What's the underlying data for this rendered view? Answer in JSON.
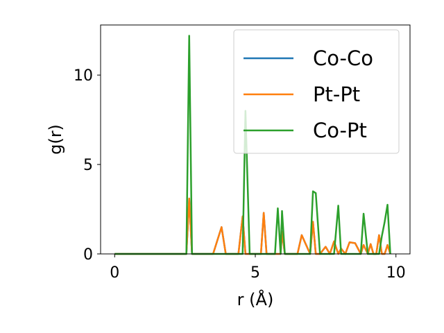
{
  "chart_data": {
    "type": "line",
    "title": "",
    "xlabel": "r (Å)",
    "ylabel": "g(r)",
    "xlim": [
      -0.5,
      10.5
    ],
    "ylim": [
      0,
      12.8
    ],
    "x_ticks": [
      0,
      5,
      10
    ],
    "y_ticks": [
      0,
      5,
      10
    ],
    "grid": false,
    "legend_position": "upper right",
    "x": [
      0.0,
      2.5,
      2.55,
      2.65,
      2.75,
      3.0,
      3.5,
      3.65,
      3.8,
      3.95,
      4.4,
      4.55,
      4.65,
      4.8,
      5.2,
      5.3,
      5.4,
      5.7,
      5.8,
      5.9,
      5.95,
      6.05,
      6.15,
      6.3,
      6.5,
      6.65,
      6.95,
      7.05,
      7.15,
      7.3,
      7.5,
      7.65,
      7.8,
      7.95,
      8.05,
      8.2,
      8.35,
      8.55,
      8.75,
      8.85,
      9.0,
      9.1,
      9.2,
      9.3,
      9.4,
      9.5,
      9.6,
      9.7,
      9.8
    ],
    "series": [
      {
        "name": "Co-Co",
        "color": "#1f77b4",
        "values": [
          0,
          0,
          0,
          3.1,
          0,
          0,
          0,
          0.75,
          1.5,
          0,
          0,
          2.1,
          0,
          0,
          0,
          2.3,
          0,
          0,
          0,
          0,
          1.25,
          0,
          0,
          0,
          0,
          1.05,
          0,
          1.8,
          0,
          0,
          0.4,
          0,
          0.7,
          0,
          0.3,
          0,
          0.65,
          0.6,
          0,
          0.5,
          0,
          0.55,
          0,
          0,
          1.05,
          0,
          0,
          0.5,
          0
        ]
      },
      {
        "name": "Pt-Pt",
        "color": "#ff7f0e",
        "values": [
          0,
          0,
          0,
          3.1,
          0,
          0,
          0,
          0.75,
          1.5,
          0,
          0,
          2.1,
          0,
          0,
          0,
          2.3,
          0,
          0,
          0,
          0,
          1.25,
          0,
          0,
          0,
          0,
          1.05,
          0,
          1.8,
          0,
          0,
          0.4,
          0,
          0.7,
          0,
          0.3,
          0,
          0.65,
          0.6,
          0,
          0.5,
          0,
          0.55,
          0,
          0,
          1.05,
          0,
          0,
          0.5,
          0
        ]
      },
      {
        "name": "Co-Pt",
        "color": "#2ca02c",
        "values": [
          0,
          0,
          0,
          12.2,
          0,
          0,
          0,
          0,
          0,
          0,
          0,
          0,
          8.0,
          0,
          0,
          0,
          0,
          0,
          2.55,
          0,
          2.4,
          0,
          0,
          0,
          0,
          0,
          0,
          3.5,
          3.4,
          0,
          0,
          0,
          0,
          2.7,
          0,
          0,
          0,
          0,
          0,
          2.25,
          0,
          0,
          0,
          0,
          0,
          1.0,
          1.8,
          2.75,
          0
        ]
      }
    ]
  }
}
